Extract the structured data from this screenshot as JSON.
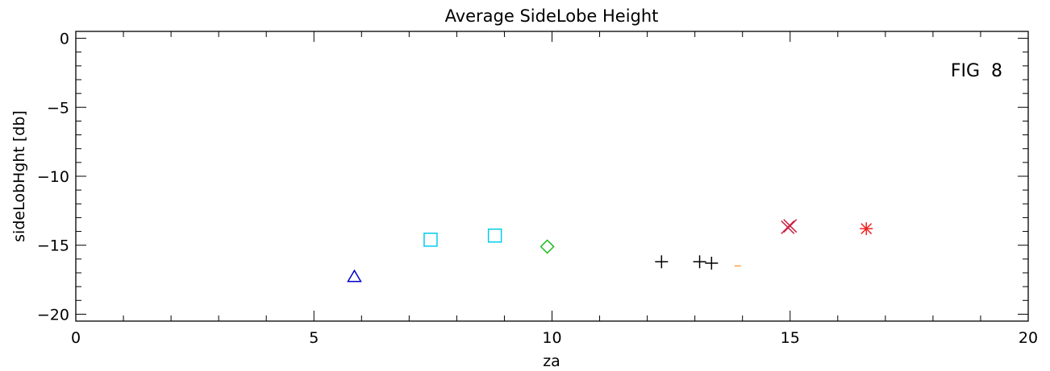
{
  "chart_data": {
    "type": "scatter",
    "title": "Average SideLobe Height",
    "xlabel": "za",
    "ylabel": "sideLobHght [db]",
    "xlim": [
      0,
      20
    ],
    "ylim": [
      -20.5,
      0.5
    ],
    "x_ticks": [
      0,
      5,
      10,
      15,
      20
    ],
    "x_tick_labels": [
      "0",
      "5",
      "10",
      "15",
      "20"
    ],
    "y_ticks": [
      0,
      -5,
      -10,
      -15,
      -20
    ],
    "y_tick_labels": [
      "0",
      "−5",
      "−10",
      "−15",
      "−20"
    ],
    "grid": false,
    "annotation": "FIG  8",
    "series": [
      {
        "marker": "triangle",
        "color": "#0000cc",
        "points": [
          [
            5.85,
            -17.3
          ]
        ]
      },
      {
        "marker": "square",
        "color": "#00ccee",
        "points": [
          [
            7.45,
            -14.6
          ],
          [
            8.8,
            -14.3
          ]
        ]
      },
      {
        "marker": "diamond",
        "color": "#22bb22",
        "points": [
          [
            9.9,
            -15.1
          ]
        ]
      },
      {
        "marker": "plus",
        "color": "#000000",
        "points": [
          [
            12.3,
            -16.2
          ],
          [
            13.1,
            -16.2
          ],
          [
            13.35,
            -16.3
          ]
        ]
      },
      {
        "marker": "dash",
        "color": "#ffa040",
        "points": [
          [
            13.9,
            -16.5
          ]
        ]
      },
      {
        "marker": "x",
        "color": "#cc2244",
        "points": [
          [
            14.95,
            -13.7
          ],
          [
            15.0,
            -13.6
          ]
        ]
      },
      {
        "marker": "asterisk",
        "color": "#ee2222",
        "points": [
          [
            16.6,
            -13.8
          ]
        ]
      }
    ]
  }
}
